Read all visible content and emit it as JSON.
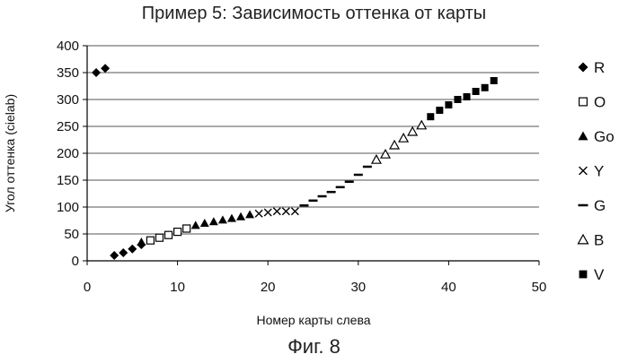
{
  "title": "Пример 5: Зависимость оттенка от карты",
  "caption": "Фиг. 8",
  "chart_data": {
    "type": "scatter",
    "title": "Пример 5: Зависимость оттенка от карты",
    "xlabel": "Номер карты слева",
    "ylabel": "Угол оттенка (cielab)",
    "xlim": [
      0,
      50
    ],
    "ylim": [
      0,
      400
    ],
    "x_ticks": [
      0,
      10,
      20,
      30,
      40,
      50
    ],
    "y_ticks": [
      0,
      50,
      100,
      150,
      200,
      250,
      300,
      350,
      400
    ],
    "grid": "horizontal",
    "legend": "right",
    "series": [
      {
        "name": "R",
        "marker": "diamond-filled",
        "x": [
          1,
          2,
          3,
          4,
          5,
          6
        ],
        "y": [
          350,
          358,
          10,
          15,
          22,
          30
        ]
      },
      {
        "name": "O",
        "marker": "square-open",
        "x": [
          7,
          8,
          9,
          10,
          11
        ],
        "y": [
          38,
          43,
          48,
          54,
          60
        ]
      },
      {
        "name": "Go",
        "marker": "triangle-filled",
        "x": [
          6,
          12,
          13,
          14,
          15,
          16,
          17,
          18
        ],
        "y": [
          35,
          66,
          70,
          73,
          76,
          79,
          82,
          86
        ]
      },
      {
        "name": "Y",
        "marker": "x",
        "x": [
          19,
          20,
          21,
          22,
          23
        ],
        "y": [
          88,
          90,
          92,
          92,
          92
        ]
      },
      {
        "name": "G",
        "marker": "dash",
        "x": [
          24,
          25,
          26,
          27,
          28,
          29,
          30,
          31
        ],
        "y": [
          103,
          112,
          120,
          128,
          137,
          147,
          160,
          175
        ]
      },
      {
        "name": "B",
        "marker": "triangle-open",
        "x": [
          32,
          33,
          34,
          35,
          36,
          37
        ],
        "y": [
          188,
          198,
          215,
          228,
          240,
          252
        ]
      },
      {
        "name": "V",
        "marker": "square-filled",
        "x": [
          38,
          39,
          40,
          41,
          42,
          43,
          44,
          45
        ],
        "y": [
          268,
          280,
          290,
          300,
          305,
          315,
          322,
          335
        ]
      }
    ]
  }
}
